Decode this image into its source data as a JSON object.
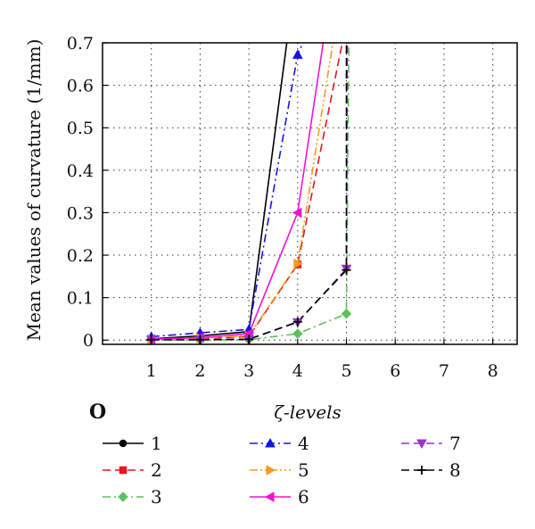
{
  "panel_label": "O",
  "chart_data": {
    "type": "line",
    "xlabel": "ζ-levels",
    "ylabel": "Mean values of curvature (1/mm)",
    "xlim": [
      0,
      8.5
    ],
    "ylim": [
      -0.01,
      0.7
    ],
    "xticks": [
      1,
      2,
      3,
      4,
      5,
      6,
      7,
      8
    ],
    "yticks": [
      0,
      0.1,
      0.2,
      0.3,
      0.4,
      0.5,
      0.6,
      0.7
    ],
    "ytick_labels": [
      "0",
      "0.1",
      "0.2",
      "0.3",
      "0.4",
      "0.5",
      "0.6",
      "0.7"
    ],
    "grid": true,
    "legend_position": "below",
    "series": [
      {
        "name": "1",
        "color": "#000000",
        "dash": "solid",
        "marker": "circle",
        "x": [
          1,
          2,
          3,
          3.8
        ],
        "y": [
          0.003,
          0.01,
          0.02,
          0.72
        ]
      },
      {
        "name": "2",
        "color": "#e8141e",
        "dash": "dashed",
        "marker": "square",
        "x": [
          1,
          2,
          3,
          4,
          4.95
        ],
        "y": [
          0.002,
          0.004,
          0.008,
          0.178,
          0.72
        ]
      },
      {
        "name": "3",
        "color": "#5cc15c",
        "dash": "dashdot",
        "marker": "diamond",
        "x": [
          1,
          2,
          3,
          4,
          5,
          5.05
        ],
        "y": [
          0.0,
          0.0,
          0.001,
          0.015,
          0.062,
          0.72
        ]
      },
      {
        "name": "4",
        "color": "#1414e0",
        "dash": "dashdot",
        "marker": "triangle-up",
        "x": [
          1,
          2,
          3,
          4,
          4.18
        ],
        "y": [
          0.008,
          0.017,
          0.025,
          0.672,
          0.72
        ]
      },
      {
        "name": "5",
        "color": "#f59b1e",
        "dash": "dashdotdot",
        "marker": "triangle-right",
        "x": [
          1,
          2,
          3,
          4,
          4.75
        ],
        "y": [
          0.002,
          0.005,
          0.01,
          0.18,
          0.72
        ]
      },
      {
        "name": "6",
        "color": "#f014d2",
        "dash": "solid",
        "marker": "triangle-left",
        "x": [
          1,
          2,
          3,
          4,
          4.55
        ],
        "y": [
          0.002,
          0.006,
          0.015,
          0.3,
          0.72
        ]
      },
      {
        "name": "7",
        "color": "#9932cc",
        "dash": "dashed",
        "marker": "triangle-down",
        "x": [
          1,
          2,
          3,
          4,
          5,
          5.02
        ],
        "y": [
          0.001,
          0.001,
          0.002,
          0.042,
          0.168,
          0.72
        ]
      },
      {
        "name": "8",
        "color": "#000000",
        "dash": "dashed",
        "marker": "plus",
        "x": [
          1,
          2,
          3,
          4,
          5,
          5.0
        ],
        "y": [
          0.001,
          0.001,
          0.002,
          0.043,
          0.165,
          0.72
        ]
      }
    ]
  }
}
